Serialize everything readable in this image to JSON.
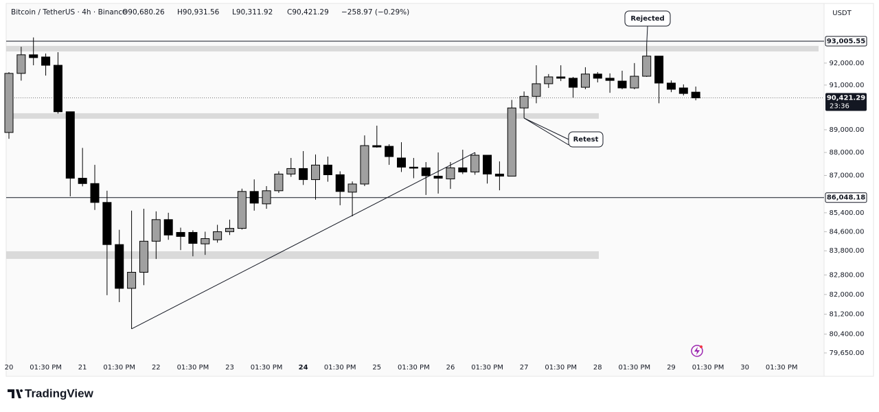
{
  "chart_data": {
    "type": "candlestick",
    "symbol": "Bitcoin / TetherUS · 4h · Binance",
    "ohlc_legend": [
      "O90,680.26",
      "H90,931.56",
      "L90,311.92",
      "C90,421.29"
    ],
    "change": "−258.97 (−0.29%)",
    "currency": "USDT",
    "brand": "TradingView",
    "log": true,
    "ylim": [
      78730,
      94770
    ],
    "yticks": [
      {
        "value": 92000,
        "label": "92,000.00"
      },
      {
        "value": 91000,
        "label": "91,000.00"
      },
      {
        "value": 89000,
        "label": "89,000.00"
      },
      {
        "value": 88000,
        "label": "88,000.00"
      },
      {
        "value": 87000,
        "label": "87,000.00"
      },
      {
        "value": 85400,
        "label": "85,400.00"
      },
      {
        "value": 84600,
        "label": "84,600.00"
      },
      {
        "value": 83800,
        "label": "83,800.00"
      },
      {
        "value": 82800,
        "label": "82,800.00"
      },
      {
        "value": 82000,
        "label": "82,000.00"
      },
      {
        "value": 81200,
        "label": "81,200.00"
      },
      {
        "value": 80400,
        "label": "80,400.00"
      },
      {
        "value": 79650,
        "label": "79,650.00"
      }
    ],
    "categories": [
      "20",
      null,
      null,
      "01:30 PM",
      null,
      null,
      "21",
      null,
      null,
      "01:30 PM",
      null,
      null,
      "22",
      null,
      null,
      "01:30 PM",
      null,
      null,
      "23",
      null,
      null,
      "01:30 PM",
      null,
      null,
      "24",
      null,
      null,
      "01:30 PM",
      null,
      null,
      "25",
      null,
      null,
      "01:30 PM",
      null,
      null,
      "26",
      null,
      null,
      "01:30 PM",
      null,
      null,
      "27",
      null,
      null,
      "01:30 PM",
      null,
      null,
      "28",
      null,
      null,
      "01:30 PM",
      null,
      null,
      "29",
      null,
      null,
      "01:30 PM",
      null,
      null,
      "30",
      null,
      null,
      "01:30 PM"
    ],
    "open": [
      88880,
      91530,
      92380,
      92280,
      91900,
      89800,
      86880,
      86650,
      85840,
      84060,
      82250,
      82910,
      84200,
      85110,
      84570,
      84570,
      84090,
      84260,
      84600,
      84740,
      86310,
      85780,
      86340,
      87060,
      87300,
      86820,
      87450,
      87030,
      86280,
      86630,
      88300,
      88270,
      87760,
      87360,
      87330,
      86970,
      86850,
      87330,
      87150,
      87880,
      87060,
      86970,
      89970,
      90490,
      91060,
      91370,
      91310,
      90900,
      91500,
      91310,
      91180,
      90870,
      91400,
      92320,
      91090,
      90870,
      90680.26,
      null,
      null,
      null,
      null,
      null,
      null,
      null
    ],
    "high": [
      91590,
      92750,
      93180,
      92440,
      92500,
      89800,
      88200,
      87460,
      86340,
      84680,
      85490,
      85570,
      85460,
      85400,
      84770,
      84660,
      84600,
      84890,
      85110,
      86430,
      86830,
      86540,
      87180,
      87760,
      88060,
      87910,
      87820,
      87180,
      86740,
      88750,
      89180,
      88360,
      88450,
      87760,
      87580,
      88000,
      87580,
      88120,
      88000,
      87880,
      87610,
      90330,
      90710,
      91900,
      91500,
      91900,
      91370,
      91810,
      91590,
      91530,
      91650,
      92000,
      92880,
      92320,
      91210,
      91030,
      90931.56,
      null,
      null,
      null,
      null,
      null,
      null,
      null
    ],
    "low": [
      88600,
      91200,
      91900,
      91430,
      89720,
      86100,
      86530,
      85520,
      81970,
      81690,
      80610,
      82380,
      83460,
      84260,
      83830,
      83570,
      83630,
      84140,
      84460,
      84690,
      85490,
      85570,
      86250,
      86940,
      86590,
      85960,
      86730,
      85720,
      85250,
      86540,
      88210,
      87460,
      87150,
      86880,
      86160,
      86220,
      86420,
      87060,
      87030,
      86650,
      86360,
      86970,
      89520,
      90180,
      90870,
      91180,
      90430,
      90810,
      91120,
      90650,
      90810,
      90810,
      91370,
      90180,
      90680,
      90530,
      90311.92,
      null,
      null,
      null,
      null,
      null,
      null,
      null
    ],
    "close": [
      91530,
      92380,
      92250,
      91900,
      89800,
      86880,
      86650,
      85840,
      84060,
      82250,
      82910,
      84200,
      85110,
      84460,
      84400,
      84110,
      84310,
      84600,
      84740,
      86310,
      85810,
      86340,
      87060,
      87300,
      86820,
      87450,
      87030,
      86310,
      86630,
      88300,
      88240,
      87820,
      87360,
      87330,
      86990,
      86880,
      87330,
      87150,
      87880,
      87060,
      86970,
      89970,
      90490,
      91060,
      91370,
      91310,
      90900,
      91500,
      91310,
      91210,
      90870,
      91400,
      92320,
      91090,
      90810,
      90620,
      90421.29,
      null,
      null,
      null,
      null,
      null,
      null,
      null
    ],
    "up_color": "#a0a0a0",
    "down_color": "#000000",
    "levels": [
      {
        "value": 93005.55,
        "label": "93,005.55"
      },
      {
        "value": 86048.18,
        "label": "86,048.18"
      }
    ],
    "last_price": {
      "value": 90421.29,
      "label": "90,421.29",
      "countdown": "23:36"
    },
    "zones": [
      [
        92535,
        92790
      ],
      [
        89490,
        89735
      ],
      [
        83465,
        83780
      ]
    ],
    "annotations": [
      "Rejected",
      "Retest"
    ]
  }
}
